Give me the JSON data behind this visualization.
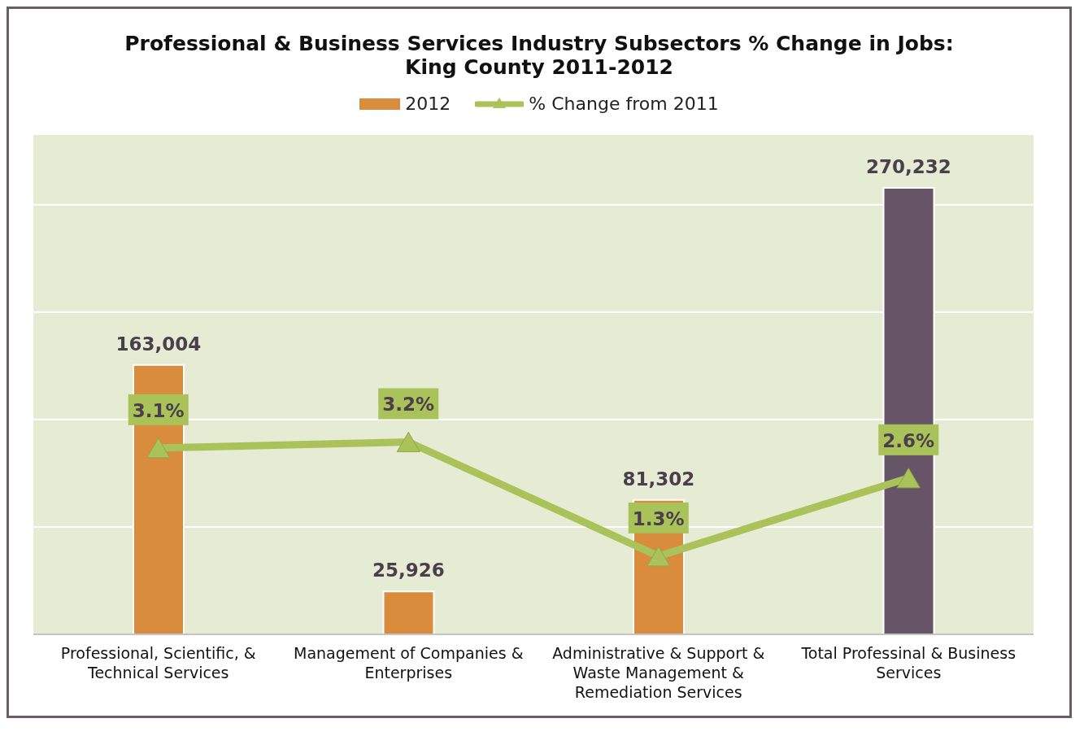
{
  "chart_data": {
    "type": "bar",
    "title": "Professional & Business Services Industry Subsectors % Change in Jobs: King County 2011-2012",
    "categories": [
      "Professional, Scientific, & Technical Services",
      "Management of Companies & Enterprises",
      "Administrative & Support & Waste Management & Remediation Services",
      "Total Professinal & Business Services"
    ],
    "series": [
      {
        "name": "2012",
        "color": "#d98c3b",
        "colors": [
          "#d98c3b",
          "#d98c3b",
          "#d98c3b",
          "#665566"
        ],
        "values": [
          163004,
          25926,
          81302,
          270232
        ],
        "value_labels": [
          "163,004",
          "25,926",
          "81,302",
          "270,232"
        ]
      },
      {
        "name": "% Change from 2011",
        "type": "line",
        "axis": "y2",
        "color": "#a9c25a",
        "marker": "triangle",
        "values": [
          3.1,
          3.2,
          1.3,
          2.6
        ],
        "value_labels": [
          "3.1%",
          "3.2%",
          "1.3%",
          "2.6%"
        ]
      }
    ],
    "grid": "y",
    "legend": "top",
    "tick_labels": "x"
  }
}
